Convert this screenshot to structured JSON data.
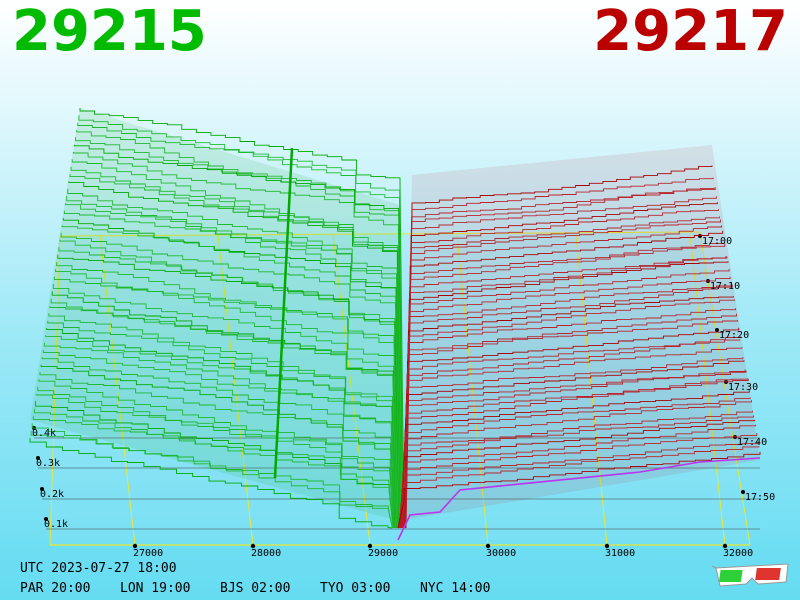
{
  "header": {
    "bid_price": "29215",
    "ask_price": "29217"
  },
  "footer": {
    "utc_label": "UTC 2023-07-27 18:00",
    "zones": [
      "PAR 20:00",
      "LON 19:00",
      "BJS 02:00",
      "TYO 03:00",
      "NYC 14:00"
    ]
  },
  "colors": {
    "bid": "#00bb00",
    "ask": "#bb0000",
    "grid": "#e8e830",
    "spread": "#bb33ee"
  },
  "icons": [
    "3d-glasses-icon"
  ],
  "chart_data": {
    "type": "area",
    "x": {
      "ticks": [
        "27000",
        "28000",
        "29000",
        "30000",
        "31000",
        "32000"
      ]
    },
    "y": {
      "ticks": [
        "0.1k",
        "0.2k",
        "0.3k",
        "0.4k"
      ]
    },
    "z": {
      "ticks": [
        "17:00",
        "17:10",
        "17:20",
        "17:30",
        "17:40",
        "17:50"
      ]
    },
    "series": [
      {
        "side": "bid",
        "best_price": 29215
      },
      {
        "side": "ask",
        "best_price": 29217
      }
    ],
    "grid": true
  }
}
